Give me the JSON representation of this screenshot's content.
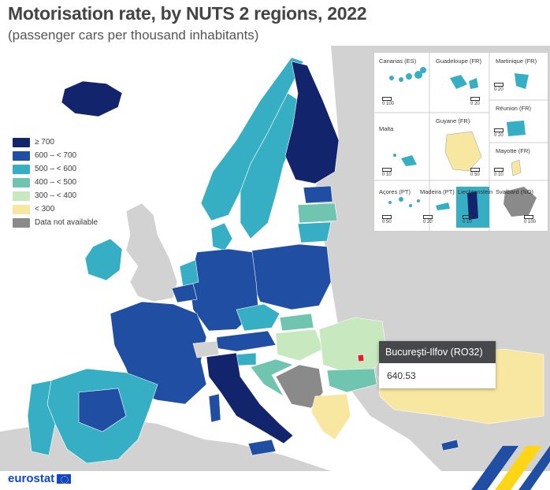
{
  "header": {
    "title": "Motorisation rate, by NUTS 2 regions, 2022",
    "subtitle": "(passenger cars per thousand inhabitants)"
  },
  "legend": {
    "items": [
      {
        "label": "≥ 700",
        "color": "#12246b"
      },
      {
        "label": "600 – < 700",
        "color": "#1f4ea3"
      },
      {
        "label": "500 – < 600",
        "color": "#36afc4"
      },
      {
        "label": "400 – < 500",
        "color": "#6fc5b0"
      },
      {
        "label": "300 – < 400",
        "color": "#c8e8bf"
      },
      {
        "label": "< 300",
        "color": "#f8e7a1"
      },
      {
        "label": "Data not available",
        "color": "#8a8a8a"
      }
    ]
  },
  "colors": {
    "sea": "#ffffff",
    "non_eu_land": "#d2d2d2",
    "border": "#ffffff",
    "highlight": "#e21f26"
  },
  "insets": [
    {
      "label": "Canarias (ES)",
      "scale": "0   100"
    },
    {
      "label": "Guadeloupe (FR)",
      "scale": "0   20"
    },
    {
      "label": "Martinique (FR)",
      "scale": "0   20"
    },
    {
      "label": "Réunion (FR)",
      "scale": "0   20"
    },
    {
      "label": "Malta",
      "scale": "0   10"
    },
    {
      "label": "Guyane (FR)",
      "scale": "0   50"
    },
    {
      "label": "Mayotte (FR)",
      "scale": "0   10"
    },
    {
      "label": "Açores (PT)",
      "scale": "0   50"
    },
    {
      "label": "Madeira (PT)",
      "scale": "0   20"
    },
    {
      "label": "Liechtenstein",
      "scale": "0   10"
    },
    {
      "label": "Svalbard (NO)",
      "scale": "0 100"
    }
  ],
  "tooltip": {
    "region": "Bucureşti-Ilfov (RO32)",
    "value": "640.53"
  },
  "footer": {
    "logo_text": "eurostat"
  }
}
